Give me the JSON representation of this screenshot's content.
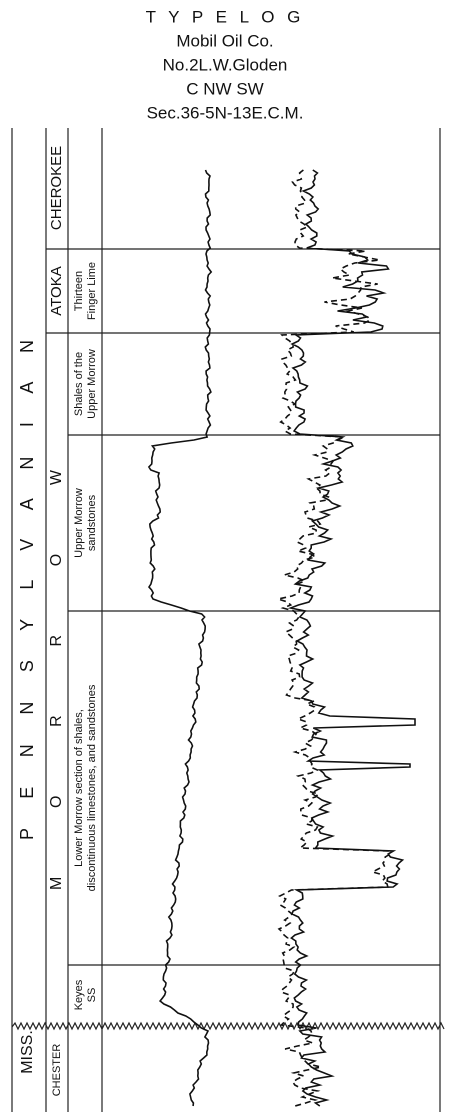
{
  "header": {
    "title": "T Y P E  L O G",
    "lines": [
      "Mobil Oil Co.",
      "No.2L.W.Gloden",
      "C NW SW",
      "Sec.36-5N-13E.C.M."
    ]
  },
  "columns": {
    "system": [
      "P E N N S Y L V A N I A N",
      "MISS."
    ],
    "series": [
      "CHEROKEE",
      "ATOKA",
      "M O R R O W",
      "CHESTER"
    ],
    "units": [
      {
        "lines": [
          "Thirteen",
          "Finger Lime"
        ]
      },
      {
        "lines": [
          "Shales of the",
          "Upper Morrow"
        ]
      },
      {
        "lines": [
          "Upper Morrow",
          "sandstones"
        ]
      },
      {
        "lines": [
          "Lower Morrow section of shales,",
          "discontinuous limestones, and sandstones"
        ]
      },
      {
        "lines": [
          "Keyes",
          "SS"
        ]
      }
    ]
  }
}
